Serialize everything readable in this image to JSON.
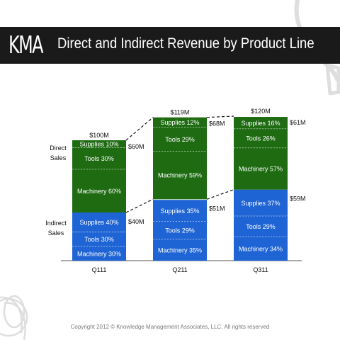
{
  "header": {
    "logo_text": "KMA",
    "title": "Direct and Indirect Revenue by Product Line"
  },
  "footer": {
    "copyright": "Copyright 2012 © Knowledge Management Associates, LLC.  All rights reserved"
  },
  "chart_data": {
    "type": "bar",
    "stacked": true,
    "categories": [
      "Q111",
      "Q211",
      "Q311"
    ],
    "totals": [
      "$100M",
      "$119M",
      "$120M"
    ],
    "groups": [
      {
        "name": "Direct Sales",
        "label_lines": [
          "Direct",
          "Sales"
        ],
        "color": "#1e6b12",
        "values": [
          60,
          68,
          61
        ],
        "value_labels": [
          "$60M",
          "$68M",
          "$61M"
        ],
        "segments": [
          {
            "name": "Machinery",
            "percents": [
              60,
              59,
              57
            ],
            "labels": [
              "Machinery 60%",
              "Machinery 59%",
              "Machinery 57%"
            ]
          },
          {
            "name": "Tools",
            "percents": [
              30,
              29,
              26
            ],
            "labels": [
              "Tools 30%",
              "Tools 29%",
              "Tools 26%"
            ]
          },
          {
            "name": "Supplies",
            "percents": [
              10,
              12,
              16
            ],
            "labels": [
              "Supplies 10%",
              "Supplies 12%",
              "Supplies 16%"
            ]
          }
        ]
      },
      {
        "name": "Indirect Sales",
        "label_lines": [
          "Indirect",
          "Sales"
        ],
        "color": "#1f64d4",
        "values": [
          40,
          51,
          59
        ],
        "value_labels": [
          "$40M",
          "$51M",
          "$59M"
        ],
        "segments": [
          {
            "name": "Machinery",
            "percents": [
              30,
              35,
              34
            ],
            "labels": [
              "Machinery 30%",
              "Machinery 35%",
              "Machinery 34%"
            ]
          },
          {
            "name": "Tools",
            "percents": [
              30,
              29,
              29
            ],
            "labels": [
              "Tools 30%",
              "Tools 29%",
              "Tools 29%"
            ]
          },
          {
            "name": "Supplies",
            "percents": [
              40,
              35,
              37
            ],
            "labels": [
              "Supplies 40%",
              "Supplies 35%",
              "Supplies 37%"
            ]
          }
        ]
      }
    ],
    "ylim": [
      0,
      120
    ]
  }
}
